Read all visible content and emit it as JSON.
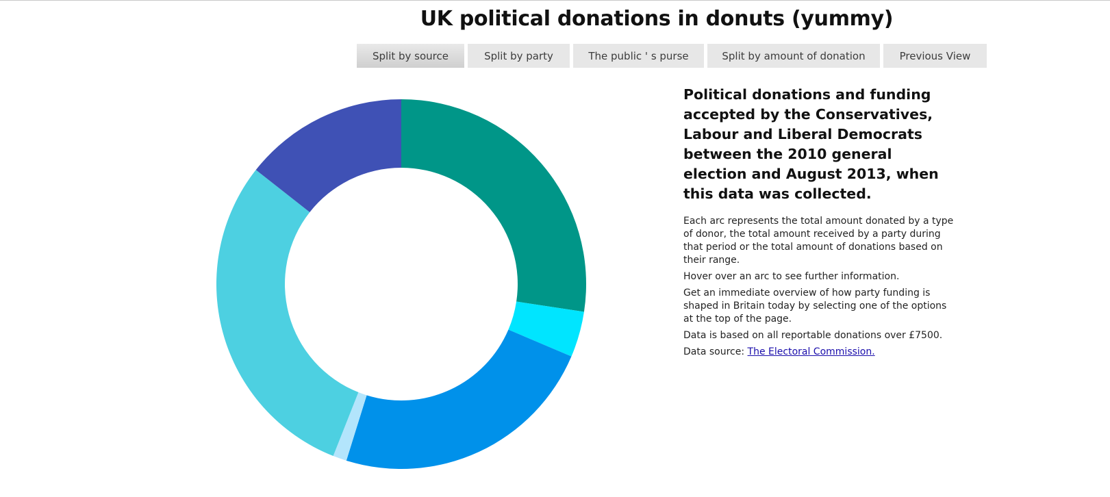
{
  "page": {
    "title": "UK political donations in donuts (yummy)"
  },
  "nav": {
    "buttons": [
      {
        "label": "Split by source",
        "active": true
      },
      {
        "label": "Split by party",
        "active": false
      },
      {
        "label": "The public ' s purse",
        "active": false
      },
      {
        "label": "Split by amount of donation",
        "active": false
      },
      {
        "label": "Previous View",
        "active": false
      }
    ]
  },
  "info": {
    "heading": "Political donations and funding accepted by the Conservatives, Labour and Liberal Democrats between the 2010 general election and August 2013, when this data was collected.",
    "paragraphs": [
      "Each arc represents the total amount donated by a type of donor, the total amount received by a party during that period or the total amount of donations based on their range.",
      "Hover over an arc to see further information.",
      "Get an immediate overview of how party funding is shaped in Britain today by selecting one of the options at the top of the page.",
      "Data is based on all reportable donations over £7500."
    ],
    "source_prefix": "Data source: ",
    "source_link_text": "The Electoral Commission."
  },
  "chart_data": {
    "type": "pie",
    "donut": true,
    "title": "",
    "slices": [
      {
        "value": 27.4,
        "color": "#009688"
      },
      {
        "value": 4.0,
        "color": "#00e5ff"
      },
      {
        "value": 23.4,
        "color": "#0091ea"
      },
      {
        "value": 1.2,
        "color": "#b3e5fc"
      },
      {
        "value": 29.6,
        "color": "#4dd0e1"
      },
      {
        "value": 14.4,
        "color": "#3f51b5"
      }
    ]
  }
}
